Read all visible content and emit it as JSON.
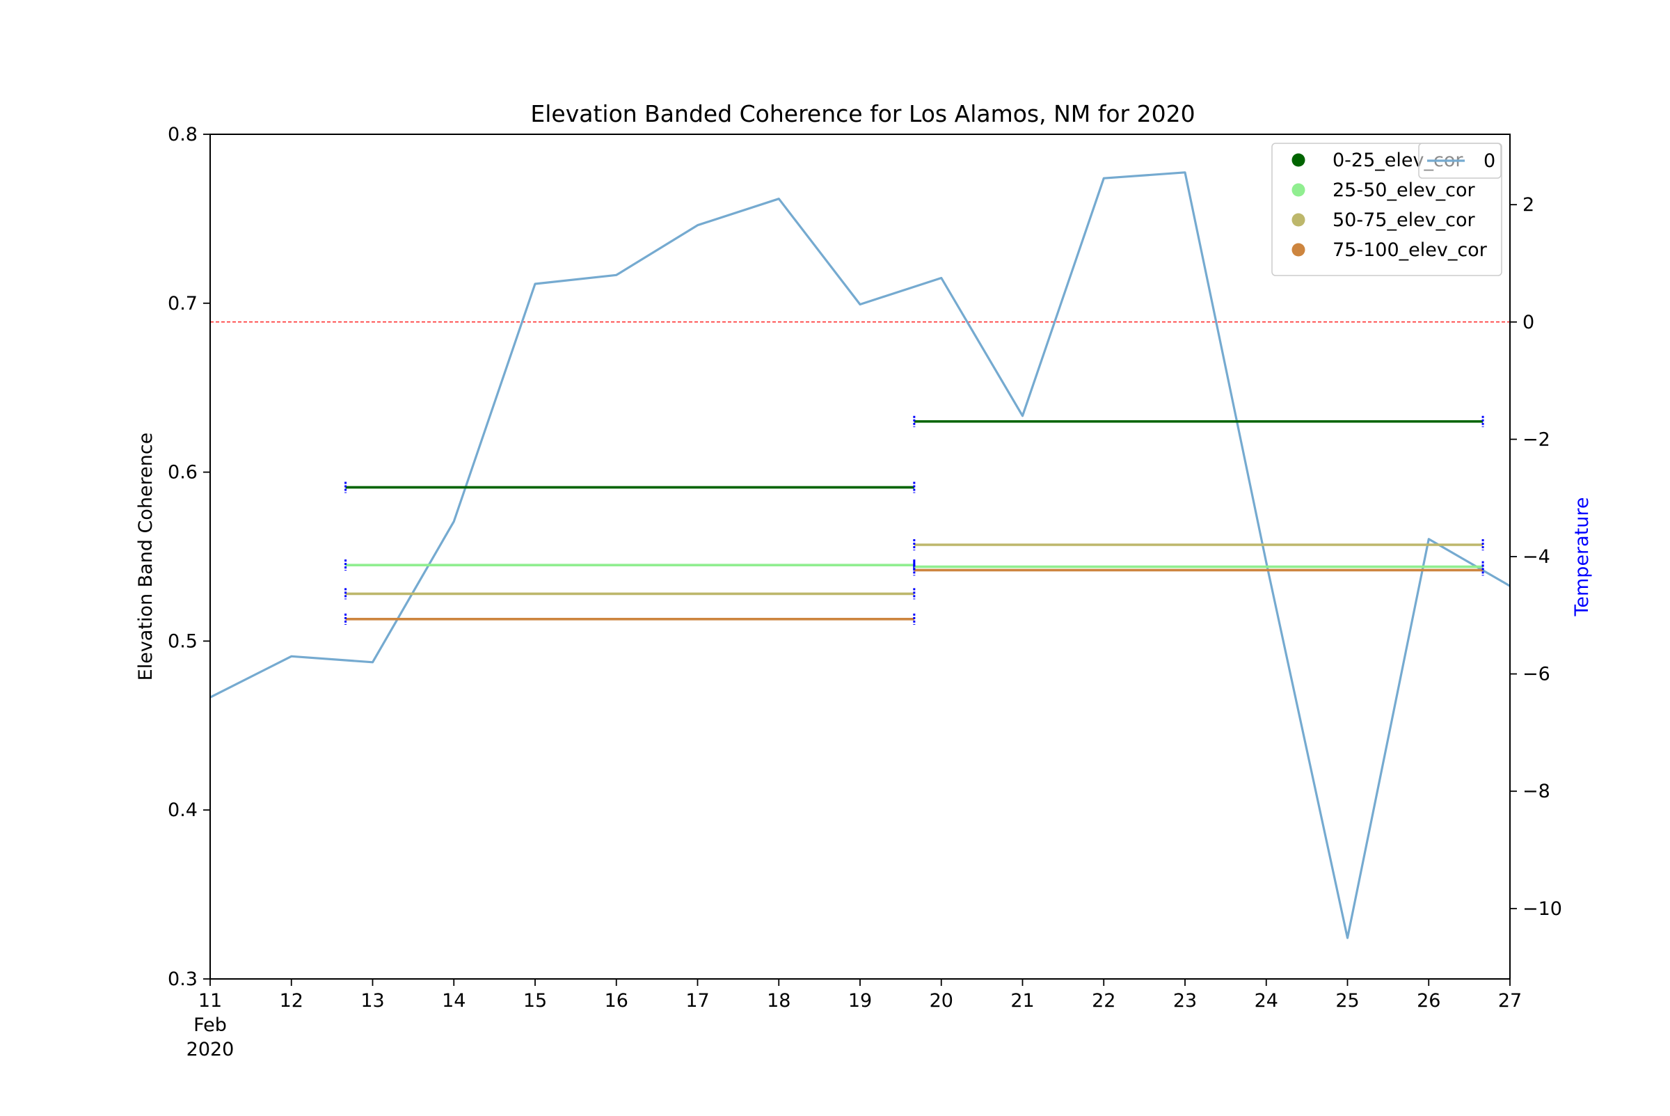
{
  "chart_data": {
    "type": "line",
    "title": "Elevation Banded Coherence for Los Alamos, NM for 2020",
    "ylabel": "Elevation Band Coherence",
    "y2label": "Temperature",
    "ylim": [
      0.3,
      0.8
    ],
    "y2lim": [
      -11.2,
      3.2
    ],
    "xlim": [
      "2020-02-11",
      "2020-02-27"
    ],
    "x_ticks": [
      {
        "date": "2020-02-11",
        "label": "11"
      },
      {
        "date": "2020-02-12",
        "label": "12"
      },
      {
        "date": "2020-02-13",
        "label": "13"
      },
      {
        "date": "2020-02-14",
        "label": "14"
      },
      {
        "date": "2020-02-15",
        "label": "15"
      },
      {
        "date": "2020-02-16",
        "label": "16"
      },
      {
        "date": "2020-02-17",
        "label": "17"
      },
      {
        "date": "2020-02-18",
        "label": "18"
      },
      {
        "date": "2020-02-19",
        "label": "19"
      },
      {
        "date": "2020-02-20",
        "label": "20"
      },
      {
        "date": "2020-02-21",
        "label": "21"
      },
      {
        "date": "2020-02-22",
        "label": "22"
      },
      {
        "date": "2020-02-23",
        "label": "23"
      },
      {
        "date": "2020-02-24",
        "label": "24"
      },
      {
        "date": "2020-02-25",
        "label": "25"
      },
      {
        "date": "2020-02-26",
        "label": "26"
      },
      {
        "date": "2020-02-27",
        "label": "27"
      }
    ],
    "x_sublabels": [
      "Feb",
      "2020"
    ],
    "y_ticks": [
      "0.3",
      "0.4",
      "0.5",
      "0.6",
      "0.7",
      "0.8"
    ],
    "y2_ticks": [
      "2",
      "0",
      "−2",
      "−4",
      "−6",
      "−8",
      "−10"
    ],
    "reference_line": {
      "axis": "y2",
      "value": 0,
      "color": "#ff0000",
      "style": "dashed"
    },
    "coherence_series": [
      {
        "name": "0-25_elev_cor",
        "color": "#006400",
        "segments": [
          {
            "x_start": "2020-02-12 16:00",
            "x_end": "2020-02-19 16:00",
            "value": 0.591
          },
          {
            "x_start": "2020-02-19 16:00",
            "x_end": "2020-02-26 16:00",
            "value": 0.63
          }
        ]
      },
      {
        "name": "25-50_elev_cor",
        "color": "#90ee90",
        "segments": [
          {
            "x_start": "2020-02-12 16:00",
            "x_end": "2020-02-19 16:00",
            "value": 0.545
          },
          {
            "x_start": "2020-02-19 16:00",
            "x_end": "2020-02-26 16:00",
            "value": 0.544
          }
        ]
      },
      {
        "name": "50-75_elev_cor",
        "color": "#bdb76b",
        "segments": [
          {
            "x_start": "2020-02-12 16:00",
            "x_end": "2020-02-19 16:00",
            "value": 0.528
          },
          {
            "x_start": "2020-02-19 16:00",
            "x_end": "2020-02-26 16:00",
            "value": 0.557
          }
        ]
      },
      {
        "name": "75-100_elev_cor",
        "color": "#cd853f",
        "segments": [
          {
            "x_start": "2020-02-12 16:00",
            "x_end": "2020-02-19 16:00",
            "value": 0.513
          },
          {
            "x_start": "2020-02-19 16:00",
            "x_end": "2020-02-26 16:00",
            "value": 0.542
          }
        ]
      }
    ],
    "error_bar_color": "#0000ff",
    "temperature_series": {
      "name": "0",
      "color": "#75aad0",
      "x": [
        "2020-02-11",
        "2020-02-12",
        "2020-02-13",
        "2020-02-14",
        "2020-02-15",
        "2020-02-16",
        "2020-02-17",
        "2020-02-18",
        "2020-02-19",
        "2020-02-20",
        "2020-02-21",
        "2020-02-22",
        "2020-02-23",
        "2020-02-24",
        "2020-02-25",
        "2020-02-26",
        "2020-02-27"
      ],
      "values": [
        -6.4,
        -5.7,
        -5.8,
        -3.4,
        0.65,
        0.8,
        1.65,
        2.1,
        0.3,
        0.75,
        -1.6,
        2.45,
        2.55,
        -4.1,
        -10.5,
        -3.7,
        -4.5
      ]
    },
    "legend": {
      "placement": "top-right",
      "entries": [
        "0-25_elev_cor",
        "25-50_elev_cor",
        "50-75_elev_cor",
        "75-100_elev_cor"
      ]
    },
    "legend2": {
      "placement": "top-right",
      "entries": [
        "0"
      ]
    }
  }
}
